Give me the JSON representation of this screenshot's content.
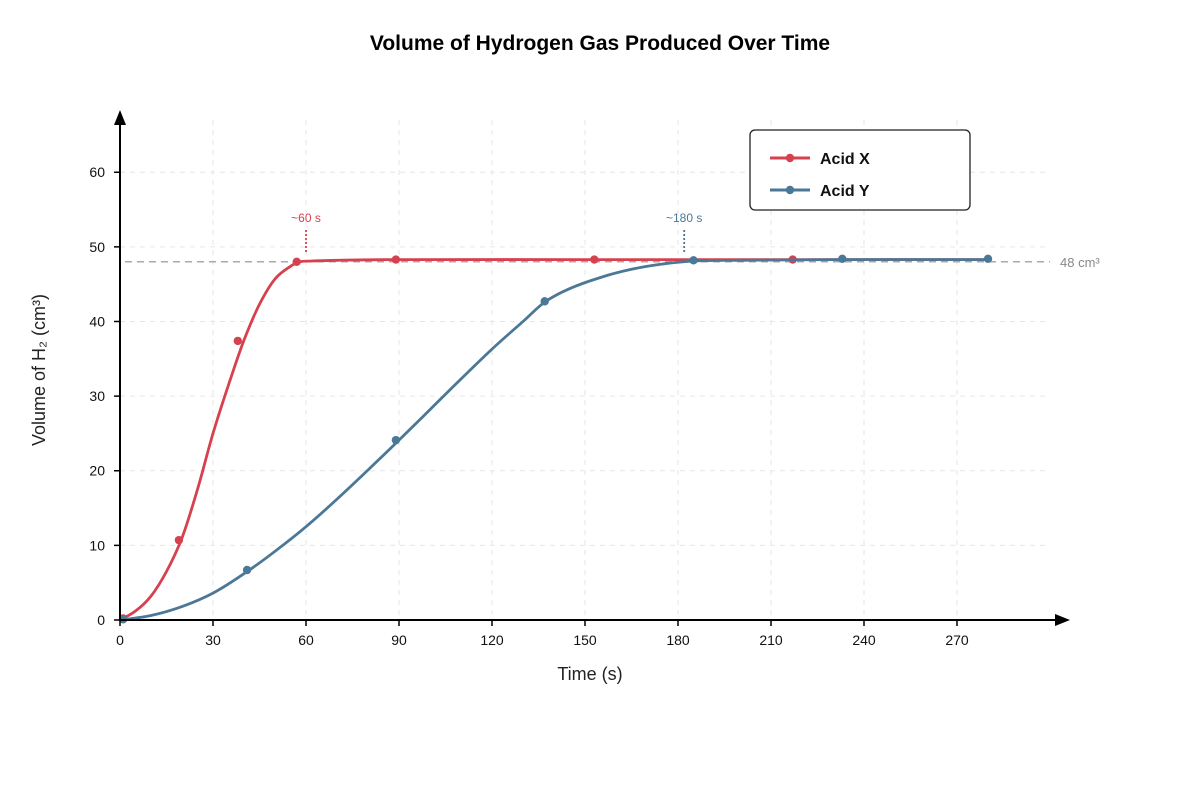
{
  "chart_data": {
    "type": "line",
    "title": "Volume of Hydrogen Gas Produced Over Time",
    "xlabel": "Time (s)",
    "ylabel": "Volume of H₂ (cm³)",
    "xlim": [
      0,
      300
    ],
    "ylim": [
      0,
      67
    ],
    "x_ticks": [
      0,
      30,
      60,
      90,
      120,
      150,
      180,
      210,
      240,
      270
    ],
    "y_ticks": [
      0,
      10,
      20,
      30,
      40,
      50,
      60
    ],
    "grid": true,
    "legend_position": "top-right",
    "series": [
      {
        "name": "Acid X",
        "color": "#d6414f",
        "curve": [
          [
            0,
            0
          ],
          [
            5,
            1.2
          ],
          [
            10,
            3.2
          ],
          [
            15,
            6.5
          ],
          [
            20,
            11
          ],
          [
            25,
            17.5
          ],
          [
            30,
            25
          ],
          [
            35,
            31.5
          ],
          [
            40,
            37.5
          ],
          [
            45,
            42.3
          ],
          [
            50,
            45.7
          ],
          [
            55,
            47.4
          ],
          [
            58,
            48
          ],
          [
            62,
            48.1
          ],
          [
            70,
            48.2
          ],
          [
            90,
            48.3
          ],
          [
            150,
            48.3
          ],
          [
            200,
            48.3
          ],
          [
            240,
            48.3
          ],
          [
            280,
            48.3
          ]
        ],
        "markers": [
          [
            1,
            0.2
          ],
          [
            19,
            10.7
          ],
          [
            38,
            37.4
          ],
          [
            57,
            48
          ],
          [
            89,
            48.3
          ],
          [
            153,
            48.3
          ],
          [
            217,
            48.3
          ]
        ]
      },
      {
        "name": "Acid Y",
        "color": "#4a7896",
        "curve": [
          [
            0,
            0
          ],
          [
            10,
            0.6
          ],
          [
            20,
            1.8
          ],
          [
            30,
            3.6
          ],
          [
            40,
            6.2
          ],
          [
            50,
            9.2
          ],
          [
            60,
            12.5
          ],
          [
            70,
            16.2
          ],
          [
            80,
            20.1
          ],
          [
            90,
            24.1
          ],
          [
            100,
            28.2
          ],
          [
            110,
            32.3
          ],
          [
            120,
            36.3
          ],
          [
            130,
            40
          ],
          [
            137,
            42.6
          ],
          [
            145,
            44.4
          ],
          [
            155,
            45.9
          ],
          [
            165,
            47
          ],
          [
            175,
            47.7
          ],
          [
            185,
            48.1
          ],
          [
            200,
            48.2
          ],
          [
            230,
            48.3
          ],
          [
            280,
            48.3
          ]
        ],
        "markers": [
          [
            1,
            0.1
          ],
          [
            41,
            6.7
          ],
          [
            89,
            24.1
          ],
          [
            137,
            42.7
          ],
          [
            185,
            48.2
          ],
          [
            233,
            48.4
          ],
          [
            280,
            48.4
          ]
        ]
      }
    ],
    "reference_line": {
      "y": 48,
      "label": "48 cm³",
      "color": "#aaaaaa"
    },
    "annotations": [
      {
        "x": 60,
        "label": "~60 s",
        "color": "#d6414f"
      },
      {
        "x": 182,
        "label": "~180 s",
        "color": "#4a7896"
      }
    ]
  }
}
